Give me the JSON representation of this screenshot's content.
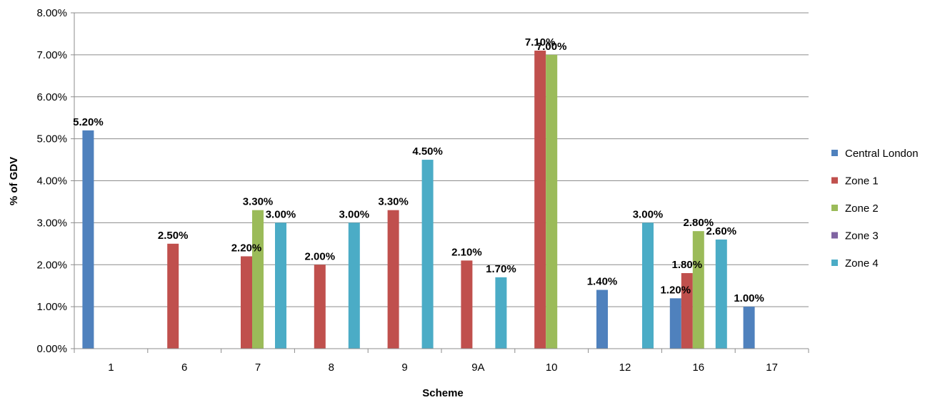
{
  "chart_data": {
    "type": "bar",
    "categories": [
      "1",
      "6",
      "7",
      "8",
      "9",
      "9A",
      "10",
      "12",
      "16",
      "17"
    ],
    "series": [
      {
        "name": "Central London",
        "color": "#4F81BD",
        "values": [
          5.2,
          null,
          null,
          null,
          null,
          null,
          null,
          1.4,
          1.2,
          1.0
        ]
      },
      {
        "name": "Zone 1",
        "color": "#C0504D",
        "values": [
          null,
          2.5,
          2.2,
          2.0,
          3.3,
          2.1,
          7.1,
          null,
          1.8,
          null
        ]
      },
      {
        "name": "Zone 2",
        "color": "#9BBB59",
        "values": [
          null,
          null,
          3.3,
          null,
          null,
          null,
          7.0,
          null,
          2.8,
          null
        ]
      },
      {
        "name": "Zone 3",
        "color": "#8064A2",
        "values": [
          null,
          null,
          null,
          null,
          null,
          null,
          null,
          null,
          null,
          null
        ]
      },
      {
        "name": "Zone 4",
        "color": "#4BACC6",
        "values": [
          null,
          null,
          3.0,
          3.0,
          4.5,
          1.7,
          null,
          3.0,
          2.6,
          null
        ]
      }
    ],
    "data_labels": [
      [
        "5.20%",
        null,
        null,
        null,
        null,
        null,
        null,
        "1.40%",
        "1.20%",
        "1.00%"
      ],
      [
        null,
        "2.50%",
        "2.20%",
        "2.00%",
        "3.30%",
        "2.10%",
        "7.10%",
        null,
        "1.80%",
        null
      ],
      [
        null,
        null,
        "3.30%",
        null,
        null,
        null,
        "7.00%",
        null,
        "2.80%",
        null
      ],
      [
        null,
        null,
        null,
        null,
        null,
        null,
        null,
        null,
        null,
        null
      ],
      [
        null,
        null,
        "3.00%",
        "3.00%",
        "4.50%",
        "1.70%",
        null,
        "3.00%",
        "2.60%",
        null
      ]
    ],
    "xlabel": "Scheme",
    "ylabel": "% of GDV",
    "ylim": [
      0,
      8
    ],
    "yticks": [
      0,
      1,
      2,
      3,
      4,
      5,
      6,
      7,
      8
    ],
    "ytick_labels": [
      "0.00%",
      "1.00%",
      "2.00%",
      "3.00%",
      "4.00%",
      "5.00%",
      "6.00%",
      "7.00%",
      "8.00%"
    ],
    "grid": true,
    "legend_position": "right"
  }
}
